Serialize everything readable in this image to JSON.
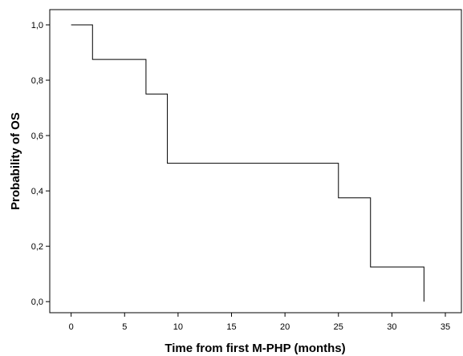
{
  "chart_data": {
    "type": "line",
    "title": "",
    "xlabel": "Time from first M-PHP (months)",
    "ylabel": "Probability of OS",
    "xlim": [
      -2,
      36.5
    ],
    "ylim": [
      -0.04,
      1.055
    ],
    "x_ticks": [
      0,
      5,
      10,
      15,
      20,
      25,
      30,
      35
    ],
    "x_tick_labels": [
      "0",
      "5",
      "10",
      "15",
      "20",
      "25",
      "30",
      "35"
    ],
    "y_ticks": [
      0.0,
      0.2,
      0.4,
      0.6,
      0.8,
      1.0
    ],
    "y_tick_labels": [
      "0,0",
      "0,2",
      "0,4",
      "0,6",
      "0,8",
      "1,0"
    ],
    "grid": false,
    "legend": "none",
    "line_color": "#000000",
    "series": [
      {
        "step": true,
        "x": [
          0,
          2,
          7,
          9,
          25,
          28,
          33,
          33
        ],
        "y": [
          1.0,
          0.875,
          0.75,
          0.5,
          0.375,
          0.125,
          0.125,
          0.0
        ]
      }
    ]
  }
}
